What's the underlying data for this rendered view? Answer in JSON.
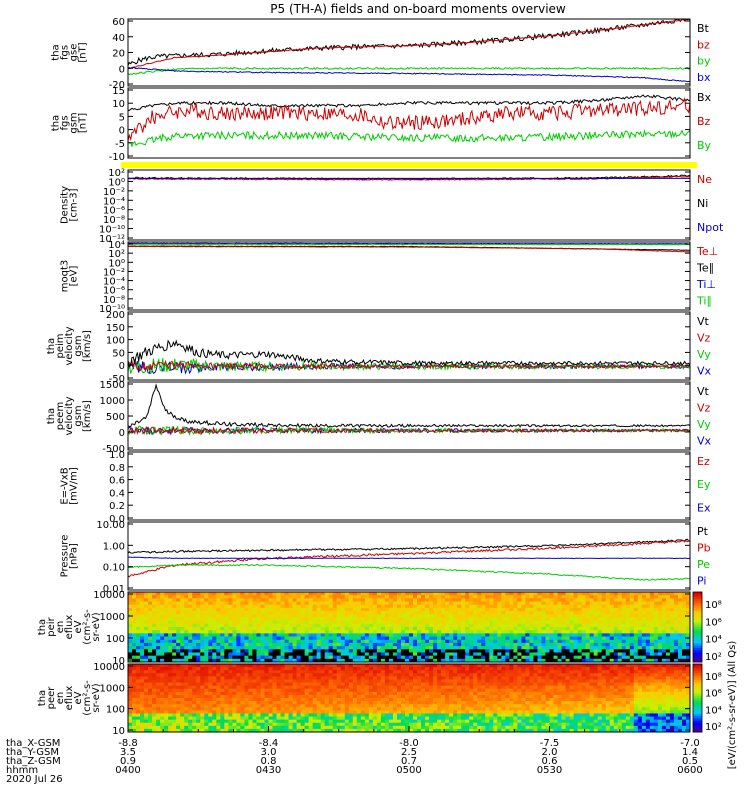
{
  "title": "P5 (TH-A) fields and on-board moments overview",
  "chart_data": [
    {
      "id": "fgs-gse",
      "type": "line",
      "ylabel": [
        "tha",
        "fgs",
        "gse",
        "[nT]"
      ],
      "yticks": [
        "60",
        "40",
        "20",
        "0",
        "-20"
      ],
      "ylim": [
        -20,
        60
      ],
      "legend": [
        {
          "name": "Bt",
          "color": "#000000"
        },
        {
          "name": "bz",
          "color": "#cc0000"
        },
        {
          "name": "by",
          "color": "#00cc00"
        },
        {
          "name": "bx",
          "color": "#0000cc"
        }
      ],
      "series": [
        {
          "name": "Bt",
          "color": "#000000",
          "x": [
            0,
            2,
            4,
            6,
            10,
            20,
            30,
            40,
            50,
            60,
            70,
            80,
            90,
            100,
            110,
            120
          ],
          "y": [
            5,
            10,
            13,
            15,
            16,
            18,
            22,
            25,
            27,
            28,
            31,
            35,
            40,
            46,
            53,
            61
          ],
          "noise": 3
        },
        {
          "name": "bz",
          "color": "#cc0000",
          "x": [
            0,
            10,
            20,
            30,
            40,
            50,
            60,
            70,
            80,
            90,
            100,
            110,
            120
          ],
          "y": [
            1,
            14,
            17,
            21,
            25,
            27,
            28,
            31,
            35,
            40,
            46,
            53,
            60
          ],
          "noise": 0.5
        },
        {
          "name": "by",
          "color": "#00cc00",
          "x": [
            0,
            10,
            20,
            30,
            60,
            90,
            120
          ],
          "y": [
            -6,
            0,
            1,
            1,
            1,
            1,
            1
          ],
          "noise": 1
        },
        {
          "name": "bx",
          "color": "#0000cc",
          "x": [
            0,
            10,
            30,
            60,
            90,
            110,
            120
          ],
          "y": [
            2,
            -2,
            -4,
            -5,
            -7,
            -10,
            -15
          ],
          "noise": 0.6
        }
      ]
    },
    {
      "id": "fgs-gsm",
      "type": "line",
      "ylabel": [
        "tha",
        "fgs",
        "gsm",
        "[nT]"
      ],
      "yticks": [
        "15",
        "10",
        "5",
        "0",
        "-5",
        "-10"
      ],
      "ylim": [
        -13,
        15
      ],
      "legend": [
        {
          "name": "Bx",
          "color": "#000000"
        },
        {
          "name": "Bz",
          "color": "#cc0000"
        },
        {
          "name": "By",
          "color": "#00cc00"
        }
      ],
      "series": [
        {
          "name": "Bx",
          "color": "#000000",
          "x": [
            0,
            5,
            10,
            20,
            30,
            40,
            50,
            60,
            70,
            80,
            90,
            100,
            110,
            115,
            120
          ],
          "y": [
            6,
            8,
            9,
            9,
            8,
            8,
            8,
            9,
            9,
            9,
            9,
            10,
            12,
            11,
            10
          ],
          "noise": 0.6
        },
        {
          "name": "Bz",
          "color": "#cc0000",
          "x": [
            0,
            5,
            8,
            12,
            20,
            30,
            40,
            50,
            55,
            60,
            70,
            80,
            90,
            100,
            110,
            120
          ],
          "y": [
            -5,
            3,
            5,
            6,
            5,
            5,
            5,
            4,
            1,
            1,
            2,
            5,
            5,
            6,
            7,
            8
          ],
          "noise": 3
        },
        {
          "name": "By",
          "color": "#00cc00",
          "x": [
            0,
            5,
            10,
            20,
            40,
            60,
            80,
            100,
            120
          ],
          "y": [
            -8,
            -6,
            -4,
            -4,
            -4,
            -5,
            -5,
            -4,
            -3
          ],
          "noise": 1.5
        }
      ]
    },
    {
      "id": "status-bar",
      "type": "bar",
      "color": "#ffff00"
    },
    {
      "id": "density",
      "type": "line",
      "yscale": "log",
      "ylabel": [
        "Density",
        "[cm-3]"
      ],
      "yticks": [
        "10²",
        "10⁰",
        "10⁻²",
        "10⁻⁴",
        "10⁻⁶",
        "10⁻⁸",
        "10⁻¹⁰",
        "10⁻¹²"
      ],
      "ylim": [
        -13,
        2
      ],
      "legend": [
        {
          "name": "Ne",
          "color": "#cc0000"
        },
        {
          "name": "Ni",
          "color": "#000000"
        },
        {
          "name": "Npot",
          "color": "#0000cc"
        }
      ],
      "series": [
        {
          "name": "Ni",
          "color": "#000000",
          "x": [
            0,
            30,
            60,
            100,
            120
          ],
          "y": [
            0.3,
            0.2,
            0.1,
            0.3,
            0.8
          ],
          "noise": 0.15
        },
        {
          "name": "Ne",
          "color": "#cc0000",
          "x": [
            0,
            30,
            60,
            100,
            120
          ],
          "y": [
            0.1,
            0.0,
            -0.1,
            0.1,
            0.6
          ],
          "noise": 0.1
        },
        {
          "name": "Npot",
          "color": "#0000cc",
          "x": [
            0,
            120
          ],
          "y": [
            0.2,
            0.2
          ],
          "noise": 0
        }
      ]
    },
    {
      "id": "temperature",
      "type": "line",
      "yscale": "log",
      "ylabel": [
        "moqt3",
        "[eV]"
      ],
      "yticks": [
        "10⁴",
        "10²",
        "10⁰",
        "10⁻²",
        "10⁻⁴",
        "10⁻⁶",
        "10⁻⁸",
        "10⁻¹⁰"
      ],
      "ylim": [
        -11,
        4
      ],
      "legend": [
        {
          "name": "Te⊥",
          "color": "#cc0000"
        },
        {
          "name": "Te∥",
          "color": "#000000"
        },
        {
          "name": "Ti⊥",
          "color": "#0000cc"
        },
        {
          "name": "Ti∥",
          "color": "#00cc00"
        }
      ],
      "series": [
        {
          "name": "Ti⊥",
          "color": "#0000cc",
          "x": [
            0,
            120
          ],
          "y": [
            3.7,
            3.6
          ],
          "noise": 0.05
        },
        {
          "name": "Ti∥",
          "color": "#00cc00",
          "x": [
            0,
            120
          ],
          "y": [
            3.5,
            3.4
          ],
          "noise": 0.05
        },
        {
          "name": "Te∥",
          "color": "#000000",
          "x": [
            0,
            60,
            120
          ],
          "y": [
            3.1,
            3.0,
            2.2
          ],
          "noise": 0.05
        },
        {
          "name": "Te⊥",
          "color": "#cc0000",
          "x": [
            0,
            60,
            100,
            120
          ],
          "y": [
            3.0,
            2.9,
            2.5,
            1.8
          ],
          "noise": 0.05
        }
      ]
    },
    {
      "id": "peim-velocity",
      "type": "line",
      "ylabel": [
        "tha",
        "peim",
        "velocity",
        "gsm",
        "[km/s]"
      ],
      "yticks": [
        "200",
        "150",
        "100",
        "50",
        "0",
        "-50"
      ],
      "ylim": [
        -50,
        200
      ],
      "legend": [
        {
          "name": "Vt",
          "color": "#000000"
        },
        {
          "name": "Vz",
          "color": "#cc0000"
        },
        {
          "name": "Vy",
          "color": "#00cc00"
        },
        {
          "name": "Vx",
          "color": "#0000cc"
        }
      ],
      "series": [
        {
          "name": "Vx",
          "color": "#0000cc",
          "x": [
            0,
            10,
            20,
            40,
            120
          ],
          "y": [
            0,
            -5,
            -2,
            0,
            0
          ],
          "noise": 30,
          "noiseDecay": 25
        },
        {
          "name": "Vy",
          "color": "#00cc00",
          "x": [
            0,
            10,
            20,
            40,
            120
          ],
          "y": [
            0,
            5,
            0,
            0,
            0
          ],
          "noise": 35,
          "noiseDecay": 25
        },
        {
          "name": "Vz",
          "color": "#cc0000",
          "x": [
            0,
            10,
            20,
            40,
            120
          ],
          "y": [
            0,
            5,
            0,
            0,
            0
          ],
          "noise": 20,
          "noiseDecay": 25
        },
        {
          "name": "Vt",
          "color": "#000000",
          "x": [
            0,
            5,
            10,
            15,
            20,
            30,
            40,
            60,
            120
          ],
          "y": [
            20,
            60,
            90,
            50,
            40,
            45,
            20,
            12,
            12
          ],
          "noise": 25,
          "noiseDecay": 25
        }
      ]
    },
    {
      "id": "peem-velocity",
      "type": "line",
      "ylabel": [
        "tha",
        "peem",
        "velocity",
        "gsm",
        "[km/s]"
      ],
      "yticks": [
        "1500",
        "1000",
        "500",
        "0",
        "-500"
      ],
      "ylim": [
        -600,
        1500
      ],
      "legend": [
        {
          "name": "Vt",
          "color": "#000000"
        },
        {
          "name": "Vz",
          "color": "#cc0000"
        },
        {
          "name": "Vy",
          "color": "#00cc00"
        },
        {
          "name": "Vx",
          "color": "#0000cc"
        }
      ],
      "series": [
        {
          "name": "Vx",
          "color": "#0000cc",
          "x": [
            0,
            120
          ],
          "y": [
            0,
            0
          ],
          "noise": 120,
          "noiseDecay": 60
        },
        {
          "name": "Vy",
          "color": "#00cc00",
          "x": [
            0,
            120
          ],
          "y": [
            0,
            0
          ],
          "noise": 140,
          "noiseDecay": 60
        },
        {
          "name": "Vz",
          "color": "#cc0000",
          "x": [
            0,
            120
          ],
          "y": [
            0,
            0
          ],
          "noise": 110,
          "noiseDecay": 60
        },
        {
          "name": "Vt",
          "color": "#000000",
          "x": [
            0,
            4,
            6,
            8,
            12,
            20,
            40,
            120
          ],
          "y": [
            100,
            400,
            1400,
            600,
            300,
            200,
            150,
            150
          ],
          "noise": 80,
          "noiseDecay": 60
        }
      ]
    },
    {
      "id": "efield",
      "type": "line",
      "ylabel": [
        "E=-VxB",
        "[mV/m]"
      ],
      "yticks": [
        "1.0",
        "0.8",
        "0.6",
        "0.4",
        "0.2",
        "0.0"
      ],
      "ylim": [
        0,
        1
      ],
      "legend": [
        {
          "name": "Ez",
          "color": "#cc0000"
        },
        {
          "name": "Ey",
          "color": "#00cc00"
        },
        {
          "name": "Ex",
          "color": "#0000cc"
        }
      ],
      "series": []
    },
    {
      "id": "pressure",
      "type": "line",
      "yscale": "log",
      "ylabel": [
        "Pressure",
        "[nPa]"
      ],
      "yticks": [
        "10.00",
        "1.00",
        "0.10",
        "0.01"
      ],
      "ylim": [
        -2,
        1
      ],
      "legend": [
        {
          "name": "Pt",
          "color": "#000000"
        },
        {
          "name": "Pb",
          "color": "#cc0000"
        },
        {
          "name": "Pe",
          "color": "#00cc00"
        },
        {
          "name": "Pi",
          "color": "#0000cc"
        }
      ],
      "series": [
        {
          "name": "Pt",
          "color": "#000000",
          "x": [
            0,
            10,
            30,
            60,
            90,
            120
          ],
          "y": [
            -0.35,
            -0.3,
            -0.25,
            -0.18,
            -0.05,
            0.2
          ],
          "noise": 0.04
        },
        {
          "name": "Pb",
          "color": "#cc0000",
          "x": [
            0,
            10,
            20,
            30,
            60,
            90,
            120
          ],
          "y": [
            -1.4,
            -0.9,
            -0.75,
            -0.6,
            -0.4,
            -0.15,
            0.15
          ],
          "noise": 0.05
        },
        {
          "name": "Pe",
          "color": "#00cc00",
          "x": [
            0,
            10,
            30,
            60,
            90,
            110,
            120
          ],
          "y": [
            -1.0,
            -0.9,
            -0.9,
            -1.05,
            -1.3,
            -1.55,
            -1.5
          ],
          "noise": 0.03
        },
        {
          "name": "Pi",
          "color": "#0000cc",
          "x": [
            0,
            10,
            60,
            120
          ],
          "y": [
            -0.55,
            -0.6,
            -0.6,
            -0.6
          ],
          "noise": 0.01
        }
      ]
    },
    {
      "id": "peir-spectrogram",
      "type": "heatmap",
      "ylabel": [
        "tha",
        "peir",
        "en",
        "eflux",
        "eV",
        "(cm²-s-",
        "sr-eV)"
      ],
      "yticks": [
        "10000",
        "1000",
        "100",
        "10"
      ],
      "ylim": [
        0.8,
        4.3
      ],
      "zlabel": "[eV/(cm²-s-sr-eV)] (All Qs)",
      "zticks": [
        "10⁸",
        "10⁶",
        "10⁴",
        "10²"
      ]
    },
    {
      "id": "peer-spectrogram",
      "type": "heatmap",
      "ylabel": [
        "tha",
        "peer",
        "en",
        "eflux",
        "eV",
        "(cm²-s-",
        "sr-eV)"
      ],
      "yticks": [
        "10000",
        "1000",
        "100",
        "10"
      ],
      "ylim": [
        0.8,
        4.3
      ],
      "zlabel": "[eV/(cm²-s-sr-eV)] (All Qs)",
      "zticks": [
        "10⁸",
        "10⁶",
        "10⁴",
        "10²"
      ]
    }
  ],
  "xaxis": {
    "rows": [
      {
        "label": "tha_X-GSM",
        "values": [
          "-8.8",
          "-8.4",
          "-8.0",
          "-7.5",
          "-7.0"
        ]
      },
      {
        "label": "tha_Y-GSM",
        "values": [
          "3.5",
          "3.0",
          "2.5",
          "2.0",
          "1.4"
        ]
      },
      {
        "label": "tha_Z-GSM",
        "values": [
          "0.9",
          "0.8",
          "0.7",
          "0.6",
          "0.5"
        ]
      },
      {
        "label": "hhmm",
        "values": [
          "0400",
          "0430",
          "0500",
          "0530",
          "0600"
        ]
      }
    ],
    "date": "2020 Jul 26"
  }
}
